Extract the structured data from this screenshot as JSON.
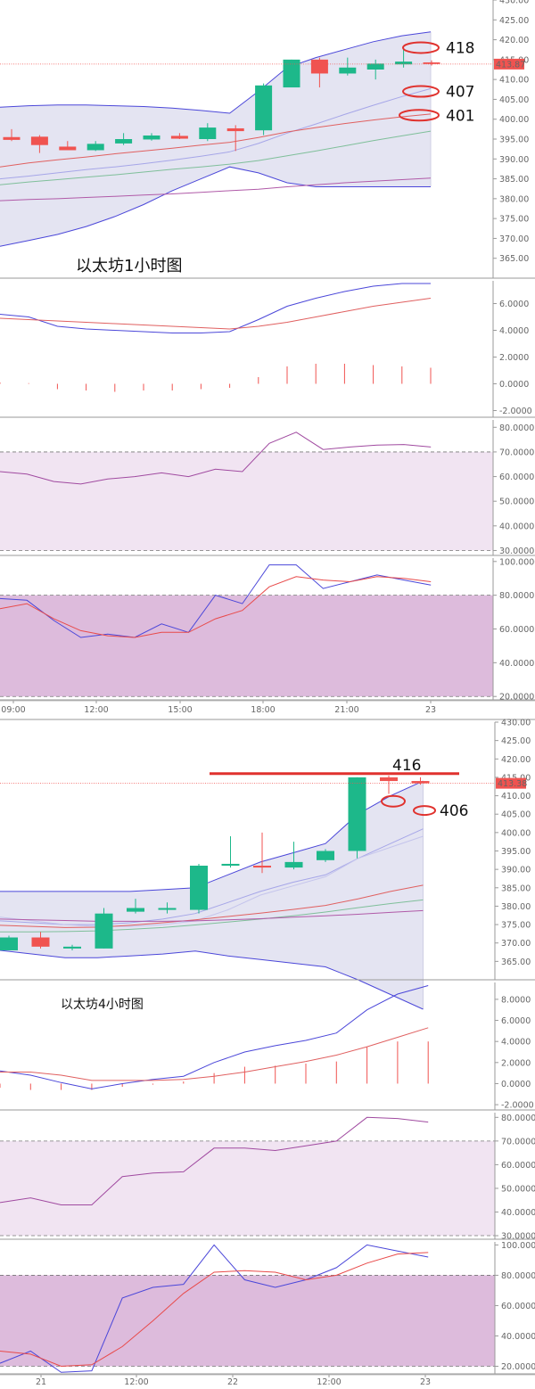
{
  "colors": {
    "up": "#1db88a",
    "down": "#f05350",
    "bb_band": "#4b47d9",
    "bb_fill": "#e4e4f2",
    "rsi_zone": "#f1e4f2",
    "kdj_zone": "#ddbbdc",
    "marker": "#e0322e"
  },
  "chart_data": [
    {
      "type": "candlestick",
      "title": "以太坊1小时图",
      "price_axis": {
        "ticks": [
          "365.00",
          "370.00",
          "375.00",
          "380.00",
          "385.00",
          "390.00",
          "395.00",
          "400.00",
          "405.00",
          "410.00",
          "415.00",
          "420.00",
          "425.00",
          "430.00"
        ],
        "ylim": [
          360,
          430
        ]
      },
      "last_price": "413.87",
      "annotations": [
        {
          "text": "418",
          "value": 418
        },
        {
          "text": "407",
          "value": 407
        },
        {
          "text": "401",
          "value": 401
        }
      ],
      "time_axis": [
        "09:00",
        "12:00",
        "15:00",
        "18:00",
        "21:00",
        "23"
      ],
      "candles": [
        {
          "o": 395.5,
          "h": 397.5,
          "l": 394.5,
          "c": 394.8
        },
        {
          "o": 395.6,
          "h": 396.0,
          "l": 391.5,
          "c": 393.5
        },
        {
          "o": 393.1,
          "h": 394.5,
          "l": 392.3,
          "c": 392.2
        },
        {
          "o": 392.2,
          "h": 394.5,
          "l": 392.0,
          "c": 393.8
        },
        {
          "o": 393.9,
          "h": 396.5,
          "l": 393.5,
          "c": 395.0
        },
        {
          "o": 394.9,
          "h": 396.5,
          "l": 394.6,
          "c": 395.9
        },
        {
          "o": 395.8,
          "h": 396.5,
          "l": 395.0,
          "c": 395.1
        },
        {
          "o": 395.0,
          "h": 399.0,
          "l": 394.5,
          "c": 397.9
        },
        {
          "o": 397.7,
          "h": 398.5,
          "l": 392.0,
          "c": 397.0
        },
        {
          "o": 397.2,
          "h": 409.0,
          "l": 396.0,
          "c": 408.5
        },
        {
          "o": 408.0,
          "h": 415.0,
          "l": 408.0,
          "c": 415.0
        },
        {
          "o": 415.0,
          "h": 415.5,
          "l": 408.0,
          "c": 411.5
        },
        {
          "o": 411.5,
          "h": 415.5,
          "l": 411.0,
          "c": 413.0
        },
        {
          "o": 412.5,
          "h": 415.0,
          "l": 410.0,
          "c": 414.0
        },
        {
          "o": 413.8,
          "h": 417.5,
          "l": 413.0,
          "c": 414.5
        },
        {
          "o": 414.3,
          "h": 414.8,
          "l": 413.5,
          "c": 413.9
        }
      ],
      "bb_upper": [
        403,
        403.4,
        403.6,
        403.6,
        403.4,
        403.2,
        402.8,
        402.2,
        401.5,
        407,
        413,
        415.5,
        417.5,
        419.5,
        421,
        422
      ],
      "bb_mid": [
        385,
        385.7,
        386.5,
        387.3,
        388,
        388.8,
        389.7,
        390.7,
        391.8,
        393.9,
        396.5,
        398.8,
        401.2,
        403.5,
        405.7,
        407.7
      ],
      "bb_lower": [
        368,
        369.5,
        371,
        373,
        375.5,
        378.5,
        382,
        385,
        388,
        386.5,
        384,
        383,
        383,
        383,
        383,
        383
      ],
      "ma_red": [
        388,
        389,
        389.8,
        390.5,
        391.3,
        392,
        392.7,
        393.5,
        394.2,
        395.4,
        396.8,
        397.9,
        398.9,
        399.8,
        400.6,
        401.3
      ],
      "ma_green": [
        383.5,
        384.2,
        384.8,
        385.4,
        386,
        386.7,
        387.4,
        388,
        388.7,
        389.6,
        390.8,
        392,
        393.3,
        394.6,
        395.8,
        397
      ],
      "ma_purple": [
        379.5,
        379.8,
        380,
        380.3,
        380.6,
        380.9,
        381.2,
        381.6,
        382,
        382.4,
        383,
        383.5,
        384,
        384.4,
        384.8,
        385.2
      ],
      "macd": {
        "ticks": [
          "-2.0000",
          "0.0000",
          "2.0000",
          "4.0000",
          "6.0000"
        ],
        "ylim": [
          -2.5,
          7.7
        ],
        "dif": [
          5.2,
          5.0,
          4.3,
          4.1,
          4.0,
          3.9,
          3.8,
          3.8,
          3.9,
          4.8,
          5.8,
          6.4,
          6.9,
          7.3,
          7.5,
          7.5
        ],
        "dea": [
          4.9,
          4.8,
          4.7,
          4.6,
          4.5,
          4.4,
          4.3,
          4.2,
          4.1,
          4.3,
          4.6,
          5.0,
          5.4,
          5.8,
          6.1,
          6.4
        ],
        "hist": [
          0.1,
          0.05,
          -0.4,
          -0.5,
          -0.6,
          -0.5,
          -0.5,
          -0.4,
          -0.3,
          0.5,
          1.3,
          1.5,
          1.5,
          1.4,
          1.3,
          1.2
        ]
      },
      "rsi": {
        "ticks": [
          "30.0000",
          "40.0000",
          "50.0000",
          "60.0000",
          "70.0000",
          "80.0000"
        ],
        "ylim": [
          28,
          83
        ],
        "zone": [
          30,
          70
        ],
        "values": [
          62,
          61,
          58,
          57,
          59,
          60,
          61.5,
          60,
          63,
          62,
          73.5,
          78,
          71,
          72,
          72.8,
          73,
          72
        ]
      },
      "kdj": {
        "ticks": [
          "20.0000",
          "40.0000",
          "60.0000",
          "80.0000",
          "100.0000"
        ],
        "ylim": [
          18,
          102
        ],
        "zone": [
          20,
          80
        ],
        "k": [
          78,
          77,
          65,
          55,
          57,
          55,
          63,
          58,
          80,
          75,
          98,
          98,
          84,
          88,
          92,
          89,
          86
        ],
        "d": [
          72,
          75,
          66,
          59,
          56,
          55,
          58,
          58,
          66,
          71,
          85,
          91,
          89,
          88,
          91,
          90,
          88
        ]
      }
    },
    {
      "type": "candlestick",
      "title": "以太坊4小时图",
      "price_axis": {
        "ticks": [
          "365.00",
          "370.00",
          "375.00",
          "380.00",
          "385.00",
          "390.00",
          "395.00",
          "400.00",
          "405.00",
          "410.00",
          "415.00",
          "420.00",
          "425.00",
          "430.00"
        ],
        "ylim": [
          360,
          430
        ]
      },
      "last_price": "413.38",
      "annotations": [
        {
          "text": "416",
          "value": 416
        },
        {
          "text": "406",
          "value": 406
        }
      ],
      "time_axis": [
        "21",
        "12:00",
        "22",
        "12:00",
        "23"
      ],
      "candles": [
        {
          "o": 368,
          "h": 372,
          "l": 368,
          "c": 371.5
        },
        {
          "o": 371.5,
          "h": 373,
          "l": 368.5,
          "c": 369
        },
        {
          "o": 368.5,
          "h": 369.5,
          "l": 368,
          "c": 369
        },
        {
          "o": 368.5,
          "h": 379.5,
          "l": 368.5,
          "c": 378
        },
        {
          "o": 378.5,
          "h": 382,
          "l": 378,
          "c": 379.5
        },
        {
          "o": 379,
          "h": 381,
          "l": 378,
          "c": 379.5
        },
        {
          "o": 379,
          "h": 391.5,
          "l": 378,
          "c": 391
        },
        {
          "o": 391,
          "h": 399,
          "l": 390.5,
          "c": 391.5
        },
        {
          "o": 391,
          "h": 400,
          "l": 389,
          "c": 390.5
        },
        {
          "o": 390.5,
          "h": 397.5,
          "l": 390,
          "c": 392
        },
        {
          "o": 392.5,
          "h": 395.5,
          "l": 392,
          "c": 395
        },
        {
          "o": 395,
          "h": 415,
          "l": 393,
          "c": 415
        },
        {
          "o": 415,
          "h": 415.5,
          "l": 410.5,
          "c": 414
        },
        {
          "o": 414,
          "h": 415,
          "l": 413,
          "c": 413.4
        }
      ],
      "bb_upper": [
        384,
        384,
        384,
        384,
        384,
        384.5,
        385,
        388.5,
        392,
        394.5,
        397,
        405,
        410,
        414
      ],
      "bb_mid": [
        376,
        375.5,
        375,
        375,
        375.5,
        376.5,
        378,
        381,
        384,
        386.5,
        388.5,
        393,
        397,
        401
      ],
      "bb_lower": [
        368,
        367,
        366,
        366,
        366.5,
        367,
        367.8,
        366.5,
        365.5,
        364.5,
        363.5,
        360,
        356,
        352
      ],
      "ma_red": [
        374.8,
        374.5,
        374.2,
        374.3,
        374.8,
        375.5,
        376.3,
        377.2,
        378.1,
        379.1,
        380.2,
        382,
        384,
        385.7
      ],
      "ma_green": [
        373,
        373,
        373.1,
        373.3,
        373.7,
        374.2,
        374.9,
        375.7,
        376.5,
        377.4,
        378.4,
        379.6,
        380.7,
        381.7
      ],
      "ma_purple": [
        376.5,
        376.3,
        376.1,
        375.9,
        375.9,
        375.9,
        376,
        376.3,
        376.6,
        377,
        377.4,
        377.8,
        378.3,
        378.8
      ],
      "ma_light": [
        377,
        376,
        375,
        374.5,
        374.5,
        375,
        376,
        379,
        383,
        385.5,
        388,
        393,
        396,
        399
      ],
      "macd": {
        "ticks": [
          "-2.0000",
          "0.0000",
          "2.0000",
          "4.0000",
          "6.0000",
          "8.0000"
        ],
        "ylim": [
          -2.5,
          9.6
        ],
        "dif": [
          1.2,
          0.8,
          0.1,
          -0.5,
          0.0,
          0.4,
          0.7,
          2.0,
          3.0,
          3.6,
          4.1,
          4.8,
          7.0,
          8.5,
          9.3
        ],
        "dea": [
          1.1,
          1.1,
          0.8,
          0.3,
          0.3,
          0.3,
          0.4,
          0.7,
          1.1,
          1.6,
          2.1,
          2.7,
          3.5,
          4.4,
          5.3
        ],
        "hist": [
          -0.4,
          -0.6,
          -0.6,
          -0.6,
          -0.3,
          -0.1,
          0.2,
          1.0,
          1.6,
          1.7,
          1.9,
          2.1,
          3.5,
          4.0,
          4.0
        ]
      },
      "rsi": {
        "ticks": [
          "30.0000",
          "40.0000",
          "50.0000",
          "60.0000",
          "70.0000",
          "80.0000"
        ],
        "ylim": [
          28.5,
          82
        ],
        "zone": [
          30,
          70
        ],
        "values": [
          44,
          46,
          43,
          43,
          55,
          56.5,
          57,
          67,
          67,
          66,
          68,
          70,
          80,
          79.5,
          78
        ]
      },
      "kdj": {
        "ticks": [
          "20.0000",
          "40.0000",
          "60.0000",
          "80.0000",
          "100.0000"
        ],
        "ylim": [
          15,
          102
        ],
        "zone": [
          20,
          80
        ],
        "k": [
          22,
          30,
          16,
          17,
          65,
          72,
          74,
          100,
          77,
          72,
          77,
          85,
          100,
          96,
          92
        ],
        "d": [
          30,
          28,
          20,
          21,
          33,
          50,
          68,
          82,
          83,
          82,
          77,
          80,
          88,
          94,
          95
        ]
      }
    }
  ]
}
